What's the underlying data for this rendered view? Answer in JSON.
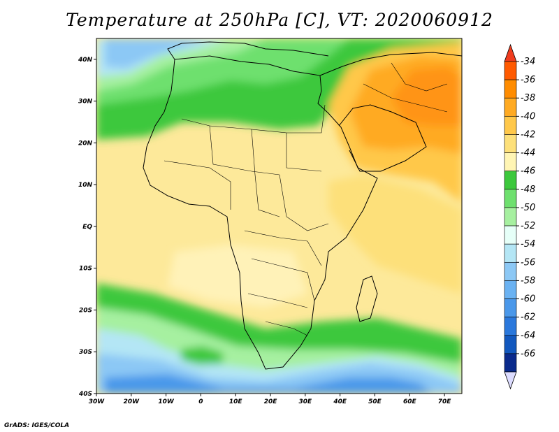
{
  "title": "Temperature at 250hPa [C], VT: 2020060912",
  "credit": "GrADS: IGES/COLA",
  "map": {
    "lat_labels": [
      "40N",
      "30N",
      "20N",
      "10N",
      "EQ",
      "10S",
      "20S",
      "30S",
      "40S"
    ],
    "lon_labels": [
      "30W",
      "20W",
      "10W",
      "0",
      "10E",
      "20E",
      "30E",
      "40E",
      "50E",
      "60E",
      "70E"
    ],
    "lat_range": [
      -40,
      45
    ],
    "lon_range": [
      -30,
      75
    ]
  },
  "colorbar": {
    "labels": [
      "-34",
      "-36",
      "-38",
      "-40",
      "-42",
      "-44",
      "-46",
      "-48",
      "-50",
      "-52",
      "-54",
      "-56",
      "-58",
      "-60",
      "-62",
      "-64",
      "-66"
    ],
    "colors": [
      "#ff5a00",
      "#ff8c00",
      "#ffaa22",
      "#ffc84a",
      "#fde07a",
      "#fff5b4",
      "#3cc83c",
      "#6ee06e",
      "#a6f0a0",
      "#e6fff8",
      "#b4e6f5",
      "#8cc8f5",
      "#6ab2f2",
      "#4a98ea",
      "#2a78dc",
      "#1258be",
      "#0a2a8c"
    ],
    "top_color": "#f03c1e",
    "bottom_color": "#dcdcff"
  }
}
